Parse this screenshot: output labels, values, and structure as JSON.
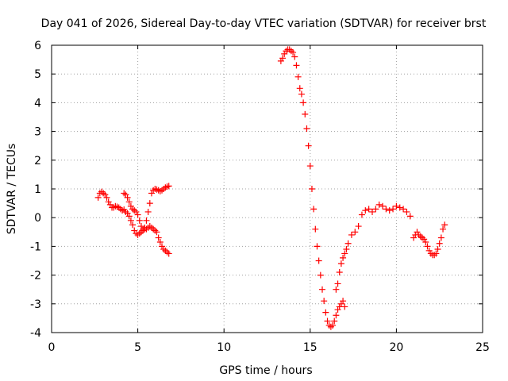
{
  "chart_data": {
    "type": "scatter",
    "title": "Day 041 of 2026, Sidereal Day-to-day VTEC variation (SDTVAR) for receiver brst",
    "xlabel": "GPS time / hours",
    "ylabel": "SDTVAR / TECUs",
    "xlim": [
      0,
      25
    ],
    "ylim": [
      -4,
      6
    ],
    "xticks": [
      "0",
      "5",
      "10",
      "15",
      "20",
      "25"
    ],
    "yticks": [
      "-4",
      "-3",
      "-2",
      "-1",
      "0",
      "1",
      "2",
      "3",
      "4",
      "5",
      "6"
    ],
    "grid": true,
    "marker": "+",
    "color": "#ff0000",
    "series": [
      {
        "name": "segment-1",
        "x": [
          2.7,
          2.8,
          2.9,
          3.0,
          3.1,
          3.2,
          3.3,
          3.4,
          3.5,
          3.6,
          3.7,
          3.8,
          3.9,
          4.0,
          4.1,
          4.2,
          4.3,
          4.4,
          4.5,
          4.6,
          4.7,
          4.8,
          4.9,
          5.0,
          5.1,
          5.2,
          5.3,
          5.4,
          5.5,
          5.6,
          5.7,
          5.8,
          5.9,
          6.0,
          6.1,
          6.2,
          6.3,
          6.4,
          6.5,
          6.6,
          6.7,
          6.8
        ],
        "y": [
          0.7,
          0.85,
          0.9,
          0.85,
          0.8,
          0.7,
          0.55,
          0.45,
          0.35,
          0.35,
          0.4,
          0.38,
          0.35,
          0.3,
          0.25,
          0.28,
          0.2,
          0.15,
          0.05,
          -0.1,
          -0.25,
          -0.45,
          -0.55,
          -0.6,
          -0.55,
          -0.5,
          -0.45,
          -0.4,
          -0.4,
          -0.35,
          -0.3,
          -0.35,
          -0.4,
          -0.45,
          -0.5,
          -0.7,
          -0.85,
          -1.0,
          -1.1,
          -1.15,
          -1.2,
          -1.25
        ]
      },
      {
        "name": "segment-2",
        "x": [
          4.2,
          4.3,
          4.4,
          4.5,
          4.6,
          4.7,
          4.8,
          4.9,
          5.0,
          5.1,
          5.2,
          5.3,
          5.4,
          5.5,
          5.6,
          5.7,
          5.8,
          5.9,
          6.0,
          6.1,
          6.2,
          6.3,
          6.4,
          6.5,
          6.6,
          6.7,
          6.8
        ],
        "y": [
          0.85,
          0.8,
          0.7,
          0.55,
          0.4,
          0.3,
          0.25,
          0.2,
          0.1,
          -0.1,
          -0.3,
          -0.4,
          -0.35,
          -0.1,
          0.2,
          0.5,
          0.85,
          0.95,
          1.0,
          0.98,
          0.95,
          0.92,
          0.95,
          1.0,
          1.05,
          1.08,
          1.1
        ]
      },
      {
        "name": "segment-3",
        "x": [
          13.3,
          13.4,
          13.5,
          13.6,
          13.7,
          13.8,
          13.9,
          14.0,
          14.1,
          14.2,
          14.3,
          14.4,
          14.5,
          14.6,
          14.7,
          14.8,
          14.9,
          15.0,
          15.1,
          15.2,
          15.3,
          15.4,
          15.5,
          15.6,
          15.7,
          15.8,
          15.9,
          16.0,
          16.1,
          16.2,
          16.3,
          16.4,
          16.5,
          16.6,
          16.7,
          16.8,
          16.9,
          17.0
        ],
        "y": [
          5.45,
          5.55,
          5.7,
          5.8,
          5.85,
          5.85,
          5.8,
          5.75,
          5.6,
          5.3,
          4.9,
          4.5,
          4.3,
          4.0,
          3.6,
          3.1,
          2.5,
          1.8,
          1.0,
          0.3,
          -0.4,
          -1.0,
          -1.5,
          -2.0,
          -2.5,
          -2.9,
          -3.3,
          -3.6,
          -3.75,
          -3.8,
          -3.75,
          -3.6,
          -3.4,
          -3.2,
          -3.1,
          -3.0,
          -2.9,
          -3.1
        ]
      },
      {
        "name": "segment-4",
        "x": [
          16.5,
          16.6,
          16.7,
          16.8,
          16.9,
          17.0,
          17.1,
          17.2,
          17.4,
          17.6,
          17.8,
          18.0,
          18.2,
          18.4,
          18.6,
          18.8,
          19.0,
          19.2,
          19.4,
          19.6,
          19.8,
          20.0,
          20.2,
          20.4,
          20.6,
          20.8
        ],
        "y": [
          -2.5,
          -2.3,
          -1.9,
          -1.6,
          -1.4,
          -1.25,
          -1.1,
          -0.9,
          -0.6,
          -0.5,
          -0.3,
          0.1,
          0.25,
          0.3,
          0.2,
          0.3,
          0.45,
          0.4,
          0.3,
          0.25,
          0.3,
          0.4,
          0.35,
          0.3,
          0.2,
          0.05
        ]
      },
      {
        "name": "segment-5",
        "x": [
          21.0,
          21.1,
          21.2,
          21.3,
          21.4,
          21.5,
          21.6,
          21.7,
          21.8,
          21.9,
          22.0,
          22.1,
          22.2,
          22.3,
          22.4,
          22.5,
          22.6,
          22.7,
          22.8
        ],
        "y": [
          -0.7,
          -0.6,
          -0.5,
          -0.6,
          -0.65,
          -0.7,
          -0.75,
          -0.85,
          -1.0,
          -1.15,
          -1.25,
          -1.3,
          -1.3,
          -1.25,
          -1.1,
          -0.9,
          -0.7,
          -0.4,
          -0.25
        ]
      }
    ]
  }
}
